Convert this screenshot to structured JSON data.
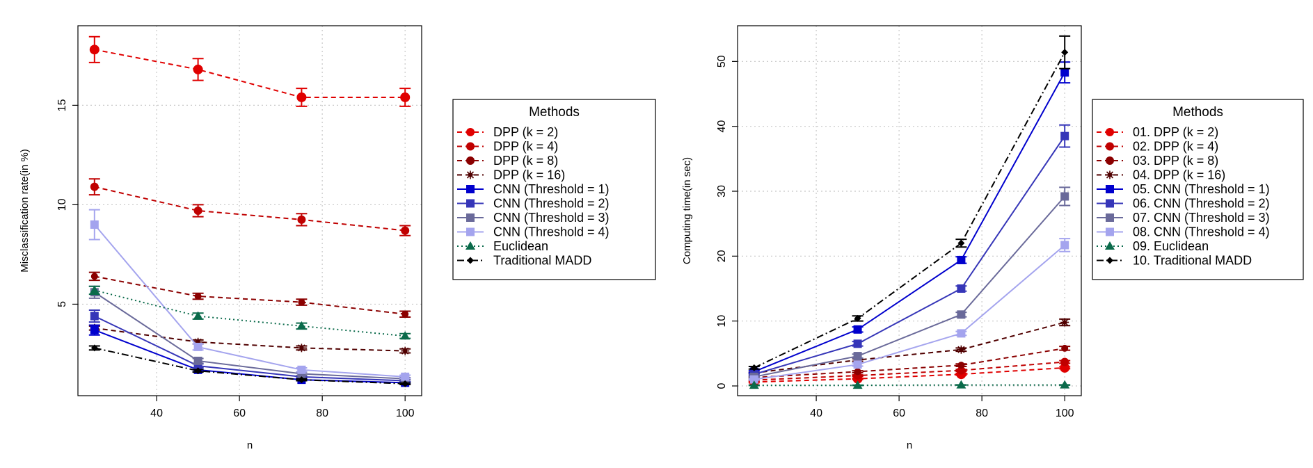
{
  "chart_data": [
    {
      "type": "line",
      "title": "",
      "xlabel": "n",
      "ylabel": "Misclassification rate(in %)",
      "x": [
        25,
        50,
        75,
        100
      ],
      "xlim": [
        21,
        104
      ],
      "ylim": [
        0.4,
        19.0
      ],
      "xticks": [
        40,
        60,
        80,
        100
      ],
      "yticks": [
        5,
        10,
        15
      ],
      "grid": true,
      "error_bars": true,
      "legend": {
        "title": "Methods",
        "placement": "right"
      },
      "series": [
        {
          "name": "DPP (k = 2)",
          "color": "#e00000",
          "linestyle": "dashed",
          "marker": "circle-large",
          "values": [
            17.8,
            16.8,
            15.4,
            15.4
          ],
          "err": [
            0.65,
            0.55,
            0.45,
            0.45
          ]
        },
        {
          "name": "DPP (k = 4)",
          "color": "#c00000",
          "linestyle": "dashed",
          "marker": "circle",
          "values": [
            10.9,
            9.7,
            9.25,
            8.7
          ],
          "err": [
            0.4,
            0.3,
            0.3,
            0.25
          ]
        },
        {
          "name": "DPP (k = 8)",
          "color": "#8b0000",
          "linestyle": "dashed",
          "marker": "circle-small",
          "values": [
            6.4,
            5.4,
            5.1,
            4.5
          ],
          "err": [
            0.2,
            0.15,
            0.15,
            0.15
          ]
        },
        {
          "name": "DPP (k = 16)",
          "color": "#500000",
          "linestyle": "dashed",
          "marker": "star",
          "values": [
            3.8,
            3.1,
            2.8,
            2.65
          ],
          "err": [
            0.1,
            0.1,
            0.1,
            0.1
          ]
        },
        {
          "name": "CNN (Threshold = 1)",
          "color": "#0000cd",
          "linestyle": "solid",
          "marker": "square",
          "values": [
            3.7,
            1.7,
            1.2,
            1.05
          ],
          "err": [
            0.25,
            0.1,
            0.05,
            0.05
          ]
        },
        {
          "name": "CNN (Threshold = 2)",
          "color": "#3636b8",
          "linestyle": "solid",
          "marker": "square",
          "values": [
            4.4,
            1.9,
            1.35,
            1.15
          ],
          "err": [
            0.3,
            0.1,
            0.05,
            0.05
          ]
        },
        {
          "name": "CNN (Threshold = 3)",
          "color": "#6a6a9a",
          "linestyle": "solid",
          "marker": "square",
          "values": [
            5.6,
            2.15,
            1.5,
            1.25
          ],
          "err": [
            0.3,
            0.12,
            0.08,
            0.06
          ]
        },
        {
          "name": "CNN (Threshold = 4)",
          "color": "#a4a4ee",
          "linestyle": "solid",
          "marker": "square",
          "values": [
            9.0,
            2.85,
            1.7,
            1.35
          ],
          "err": [
            0.75,
            0.15,
            0.1,
            0.08
          ]
        },
        {
          "name": "Euclidean",
          "color": "#0a6a4a",
          "linestyle": "dotted",
          "marker": "triangle",
          "values": [
            5.7,
            4.4,
            3.9,
            3.4
          ],
          "err": [
            0.2,
            0.15,
            0.15,
            0.12
          ]
        },
        {
          "name": "Traditional MADD",
          "color": "#000000",
          "linestyle": "dotdash",
          "marker": "diamond",
          "values": [
            2.8,
            1.65,
            1.2,
            1.0
          ],
          "err": [
            0.1,
            0.06,
            0.05,
            0.04
          ]
        }
      ]
    },
    {
      "type": "line",
      "title": "",
      "xlabel": "n",
      "ylabel": "Computing time(in sec)",
      "x": [
        25,
        50,
        75,
        100
      ],
      "xlim": [
        21,
        104
      ],
      "ylim": [
        -1.5,
        55.5
      ],
      "xticks": [
        40,
        60,
        80,
        100
      ],
      "yticks": [
        0,
        10,
        20,
        30,
        40,
        50
      ],
      "grid": true,
      "error_bars": true,
      "legend": {
        "title": "Methods",
        "placement": "right"
      },
      "series": [
        {
          "name": "01. DPP (k = 2)",
          "color": "#e00000",
          "linestyle": "dashed",
          "marker": "circle-large",
          "values": [
            0.6,
            1.1,
            1.8,
            2.8
          ],
          "err": [
            0.1,
            0.1,
            0.15,
            0.15
          ]
        },
        {
          "name": "02. DPP (k = 4)",
          "color": "#c00000",
          "linestyle": "dashed",
          "marker": "circle",
          "values": [
            0.9,
            1.6,
            2.4,
            3.7
          ],
          "err": [
            0.1,
            0.1,
            0.15,
            0.2
          ]
        },
        {
          "name": "03. DPP (k = 8)",
          "color": "#8b0000",
          "linestyle": "dashed",
          "marker": "circle-small",
          "values": [
            1.3,
            2.2,
            3.2,
            5.8
          ],
          "err": [
            0.1,
            0.15,
            0.2,
            0.3
          ]
        },
        {
          "name": "04. DPP (k = 16)",
          "color": "#500000",
          "linestyle": "dashed",
          "marker": "star",
          "values": [
            2.0,
            4.0,
            5.6,
            9.8
          ],
          "err": [
            0.1,
            0.2,
            0.25,
            0.5
          ]
        },
        {
          "name": "05. CNN (Threshold = 1)",
          "color": "#0000cd",
          "linestyle": "solid",
          "marker": "square",
          "values": [
            2.2,
            8.7,
            19.4,
            48.3
          ],
          "err": [
            0.15,
            0.4,
            0.5,
            1.6
          ]
        },
        {
          "name": "06. CNN (Threshold = 2)",
          "color": "#3636b8",
          "linestyle": "solid",
          "marker": "square",
          "values": [
            1.8,
            6.5,
            15.0,
            38.5
          ],
          "err": [
            0.12,
            0.35,
            0.4,
            1.7
          ]
        },
        {
          "name": "07. CNN (Threshold = 3)",
          "color": "#6a6a9a",
          "linestyle": "solid",
          "marker": "square",
          "values": [
            1.4,
            4.6,
            11.0,
            29.2
          ],
          "err": [
            0.1,
            0.3,
            0.35,
            1.4
          ]
        },
        {
          "name": "08. CNN (Threshold = 4)",
          "color": "#a4a4ee",
          "linestyle": "solid",
          "marker": "square",
          "values": [
            1.0,
            3.3,
            8.1,
            21.7
          ],
          "err": [
            0.1,
            0.25,
            0.3,
            1.0
          ]
        },
        {
          "name": "09. Euclidean",
          "color": "#0a6a4a",
          "linestyle": "dotted",
          "marker": "triangle",
          "values": [
            0.1,
            0.1,
            0.15,
            0.15
          ],
          "err": [
            0.03,
            0.03,
            0.03,
            0.03
          ]
        },
        {
          "name": "10. Traditional MADD",
          "color": "#000000",
          "linestyle": "dotdash",
          "marker": "diamond",
          "values": [
            2.8,
            10.4,
            22.0,
            51.4
          ],
          "err": [
            0.2,
            0.4,
            0.6,
            2.5
          ]
        }
      ]
    }
  ]
}
